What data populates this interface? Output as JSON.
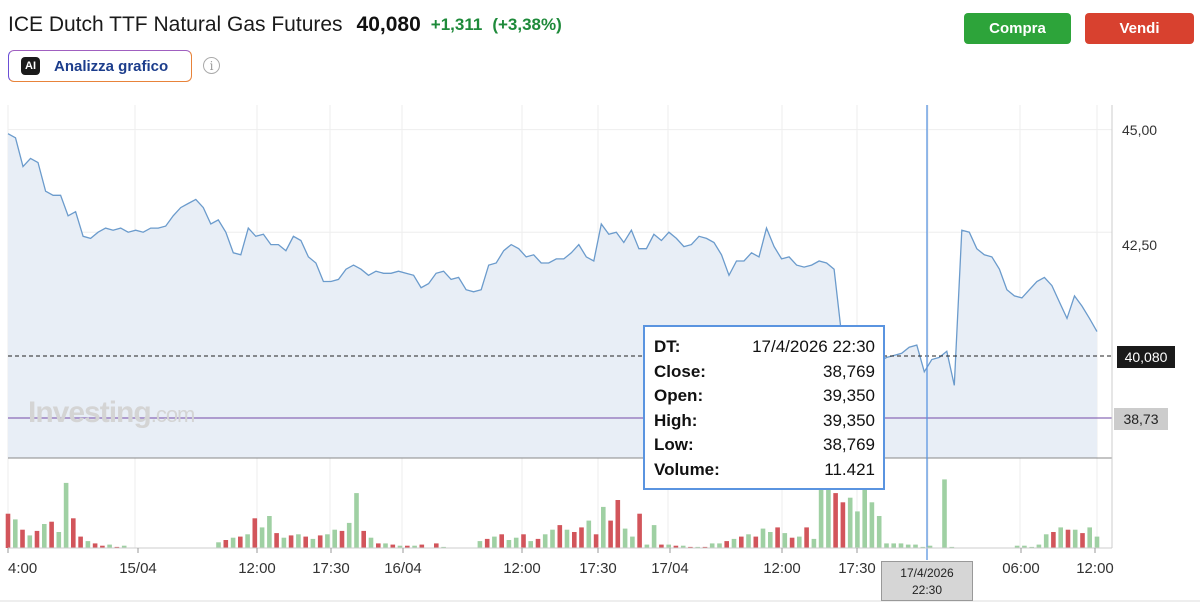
{
  "header": {
    "instrument": "ICE Dutch TTF Natural Gas Futures",
    "last_price": "40,080",
    "change": "+1,311",
    "change_pct": "(+3,38%)",
    "up_color": "#1e8a3a",
    "arrow_icon": "up-arrow-icon"
  },
  "actions": {
    "buy_label": "Compra",
    "sell_label": "Vendi"
  },
  "analyze": {
    "icon_text": "AI",
    "label": "Analizza grafico",
    "info_icon": "info-icon"
  },
  "watermark": {
    "brand": "Investing",
    "suffix": ".com"
  },
  "axis": {
    "price_ticks": [
      "45,00",
      "42,50"
    ],
    "current_price_label": "40,080",
    "crosshair_price_label": "38,73",
    "time_ticks": [
      "4:00",
      "15/04",
      "12:00",
      "17:30",
      "16/04",
      "12:00",
      "17:30",
      "17/04",
      "12:00",
      "17:30",
      "06:00",
      "12:00"
    ],
    "crosshair_time": [
      "17/4/2026",
      "22:30"
    ]
  },
  "tooltip": {
    "rows": [
      {
        "k": "DT:",
        "v": "17/4/2026 22:30"
      },
      {
        "k": "Close:",
        "v": "38,769"
      },
      {
        "k": "Open:",
        "v": "39,350"
      },
      {
        "k": "High:",
        "v": "39,350"
      },
      {
        "k": "Low:",
        "v": "38,769"
      },
      {
        "k": "Volume:",
        "v": "11.421"
      }
    ]
  },
  "chart_data": {
    "type": "area",
    "y_range": [
      37.0,
      45.6
    ],
    "price_series": [
      44.9,
      44.8,
      44.1,
      44.3,
      44.2,
      43.5,
      43.4,
      43.4,
      42.9,
      43.0,
      42.4,
      42.35,
      42.5,
      42.6,
      42.55,
      42.6,
      42.5,
      42.55,
      42.5,
      42.6,
      42.6,
      42.65,
      42.9,
      43.1,
      43.2,
      43.3,
      43.1,
      42.7,
      42.8,
      42.5,
      42.0,
      41.95,
      42.6,
      42.4,
      42.45,
      42.2,
      42.2,
      42.05,
      42.4,
      42.3,
      41.9,
      41.75,
      41.3,
      41.3,
      41.35,
      41.6,
      41.7,
      41.6,
      41.45,
      41.55,
      41.5,
      41.5,
      41.55,
      41.5,
      41.45,
      41.15,
      41.25,
      41.5,
      41.55,
      41.35,
      41.4,
      41.1,
      41.05,
      41.1,
      41.7,
      41.75,
      42.05,
      42.2,
      42.1,
      41.9,
      41.95,
      41.75,
      41.75,
      41.85,
      41.85,
      42.0,
      42.2,
      41.9,
      41.8,
      42.7,
      42.45,
      42.5,
      42.25,
      42.55,
      42.1,
      42.1,
      42.45,
      42.3,
      42.5,
      42.35,
      42.15,
      42.2,
      42.4,
      42.35,
      42.25,
      41.95,
      41.45,
      41.8,
      41.8,
      42.0,
      41.9,
      42.6,
      42.15,
      41.85,
      41.9,
      41.7,
      41.65,
      41.7,
      41.8,
      41.75,
      41.6,
      40.0,
      39.3,
      39.15,
      39.35,
      39.5,
      39.35,
      39.45,
      39.5,
      39.55,
      39.7,
      39.75,
      39.1,
      39.4,
      39.45,
      39.6,
      38.77,
      42.55,
      42.5,
      42.1,
      41.95,
      41.9,
      41.6,
      41.1,
      40.95,
      40.9,
      41.1,
      41.3,
      41.4,
      41.2,
      40.8,
      40.4,
      40.95,
      40.7,
      40.4,
      40.08
    ],
    "last": 40.08,
    "crosshair_price": 38.73,
    "volume_series": [
      30,
      25,
      16,
      11,
      15,
      21,
      23,
      14,
      57,
      26,
      10,
      6,
      4,
      2,
      3,
      1,
      2,
      0,
      0,
      0,
      0,
      0,
      0,
      0,
      0,
      0,
      0,
      0,
      0,
      5,
      7,
      9,
      10,
      12,
      26,
      18,
      28,
      13,
      9,
      11,
      12,
      10,
      8,
      11,
      12,
      16,
      15,
      22,
      48,
      15,
      9,
      4,
      4,
      3,
      2,
      2,
      2,
      3,
      0,
      4,
      1,
      0,
      0,
      0,
      0,
      6,
      8,
      10,
      12,
      7,
      9,
      12,
      6,
      8,
      12,
      16,
      20,
      16,
      14,
      18,
      24,
      12,
      36,
      24,
      42,
      17,
      10,
      30,
      3,
      20,
      3,
      3,
      2,
      2,
      1,
      1,
      1,
      4,
      4,
      6,
      8,
      10,
      12,
      10,
      17,
      14,
      18,
      13,
      9,
      10,
      18,
      8,
      63,
      55,
      48,
      40,
      44,
      32,
      58,
      40,
      28,
      4,
      4,
      4,
      3,
      3,
      1,
      2,
      0,
      60,
      1,
      0,
      0,
      0,
      0,
      0,
      0,
      0,
      0,
      2,
      2,
      1,
      3,
      12,
      14,
      18,
      16,
      16,
      13,
      18,
      10
    ],
    "volume_dir": [
      1,
      0,
      1,
      0,
      1,
      0,
      1,
      0,
      0,
      1,
      1,
      0,
      1,
      1,
      0,
      1,
      0,
      0,
      0,
      0,
      0,
      0,
      0,
      0,
      0,
      0,
      0,
      0,
      0,
      0,
      1,
      0,
      1,
      0,
      1,
      0,
      0,
      1,
      0,
      1,
      0,
      1,
      0,
      1,
      0,
      0,
      1,
      0,
      0,
      1,
      0,
      1,
      0,
      1,
      0,
      1,
      0,
      1,
      0,
      1,
      0,
      0,
      0,
      0,
      0,
      0,
      1,
      0,
      1,
      0,
      0,
      1,
      0,
      1,
      0,
      0,
      1,
      0,
      1,
      1,
      0,
      1,
      0,
      1,
      1,
      0,
      0,
      1,
      0,
      0,
      1,
      0,
      1,
      0,
      1,
      0,
      1,
      0,
      0,
      1,
      0,
      1,
      0,
      1,
      0,
      0,
      1,
      0,
      1,
      0,
      1,
      0,
      0,
      0,
      1,
      1,
      0,
      0,
      0,
      0,
      0,
      0,
      0,
      0,
      0,
      0,
      0,
      0,
      0,
      0,
      0,
      0,
      0,
      0,
      0,
      0,
      0,
      0,
      0,
      0,
      0,
      0,
      0,
      0,
      1,
      0,
      1,
      0,
      1,
      0,
      0,
      1
    ],
    "colors": {
      "up": "#9fd0a3",
      "down": "#d2555b",
      "line": "#6b9bcc",
      "fill": "#e8eef6"
    }
  }
}
